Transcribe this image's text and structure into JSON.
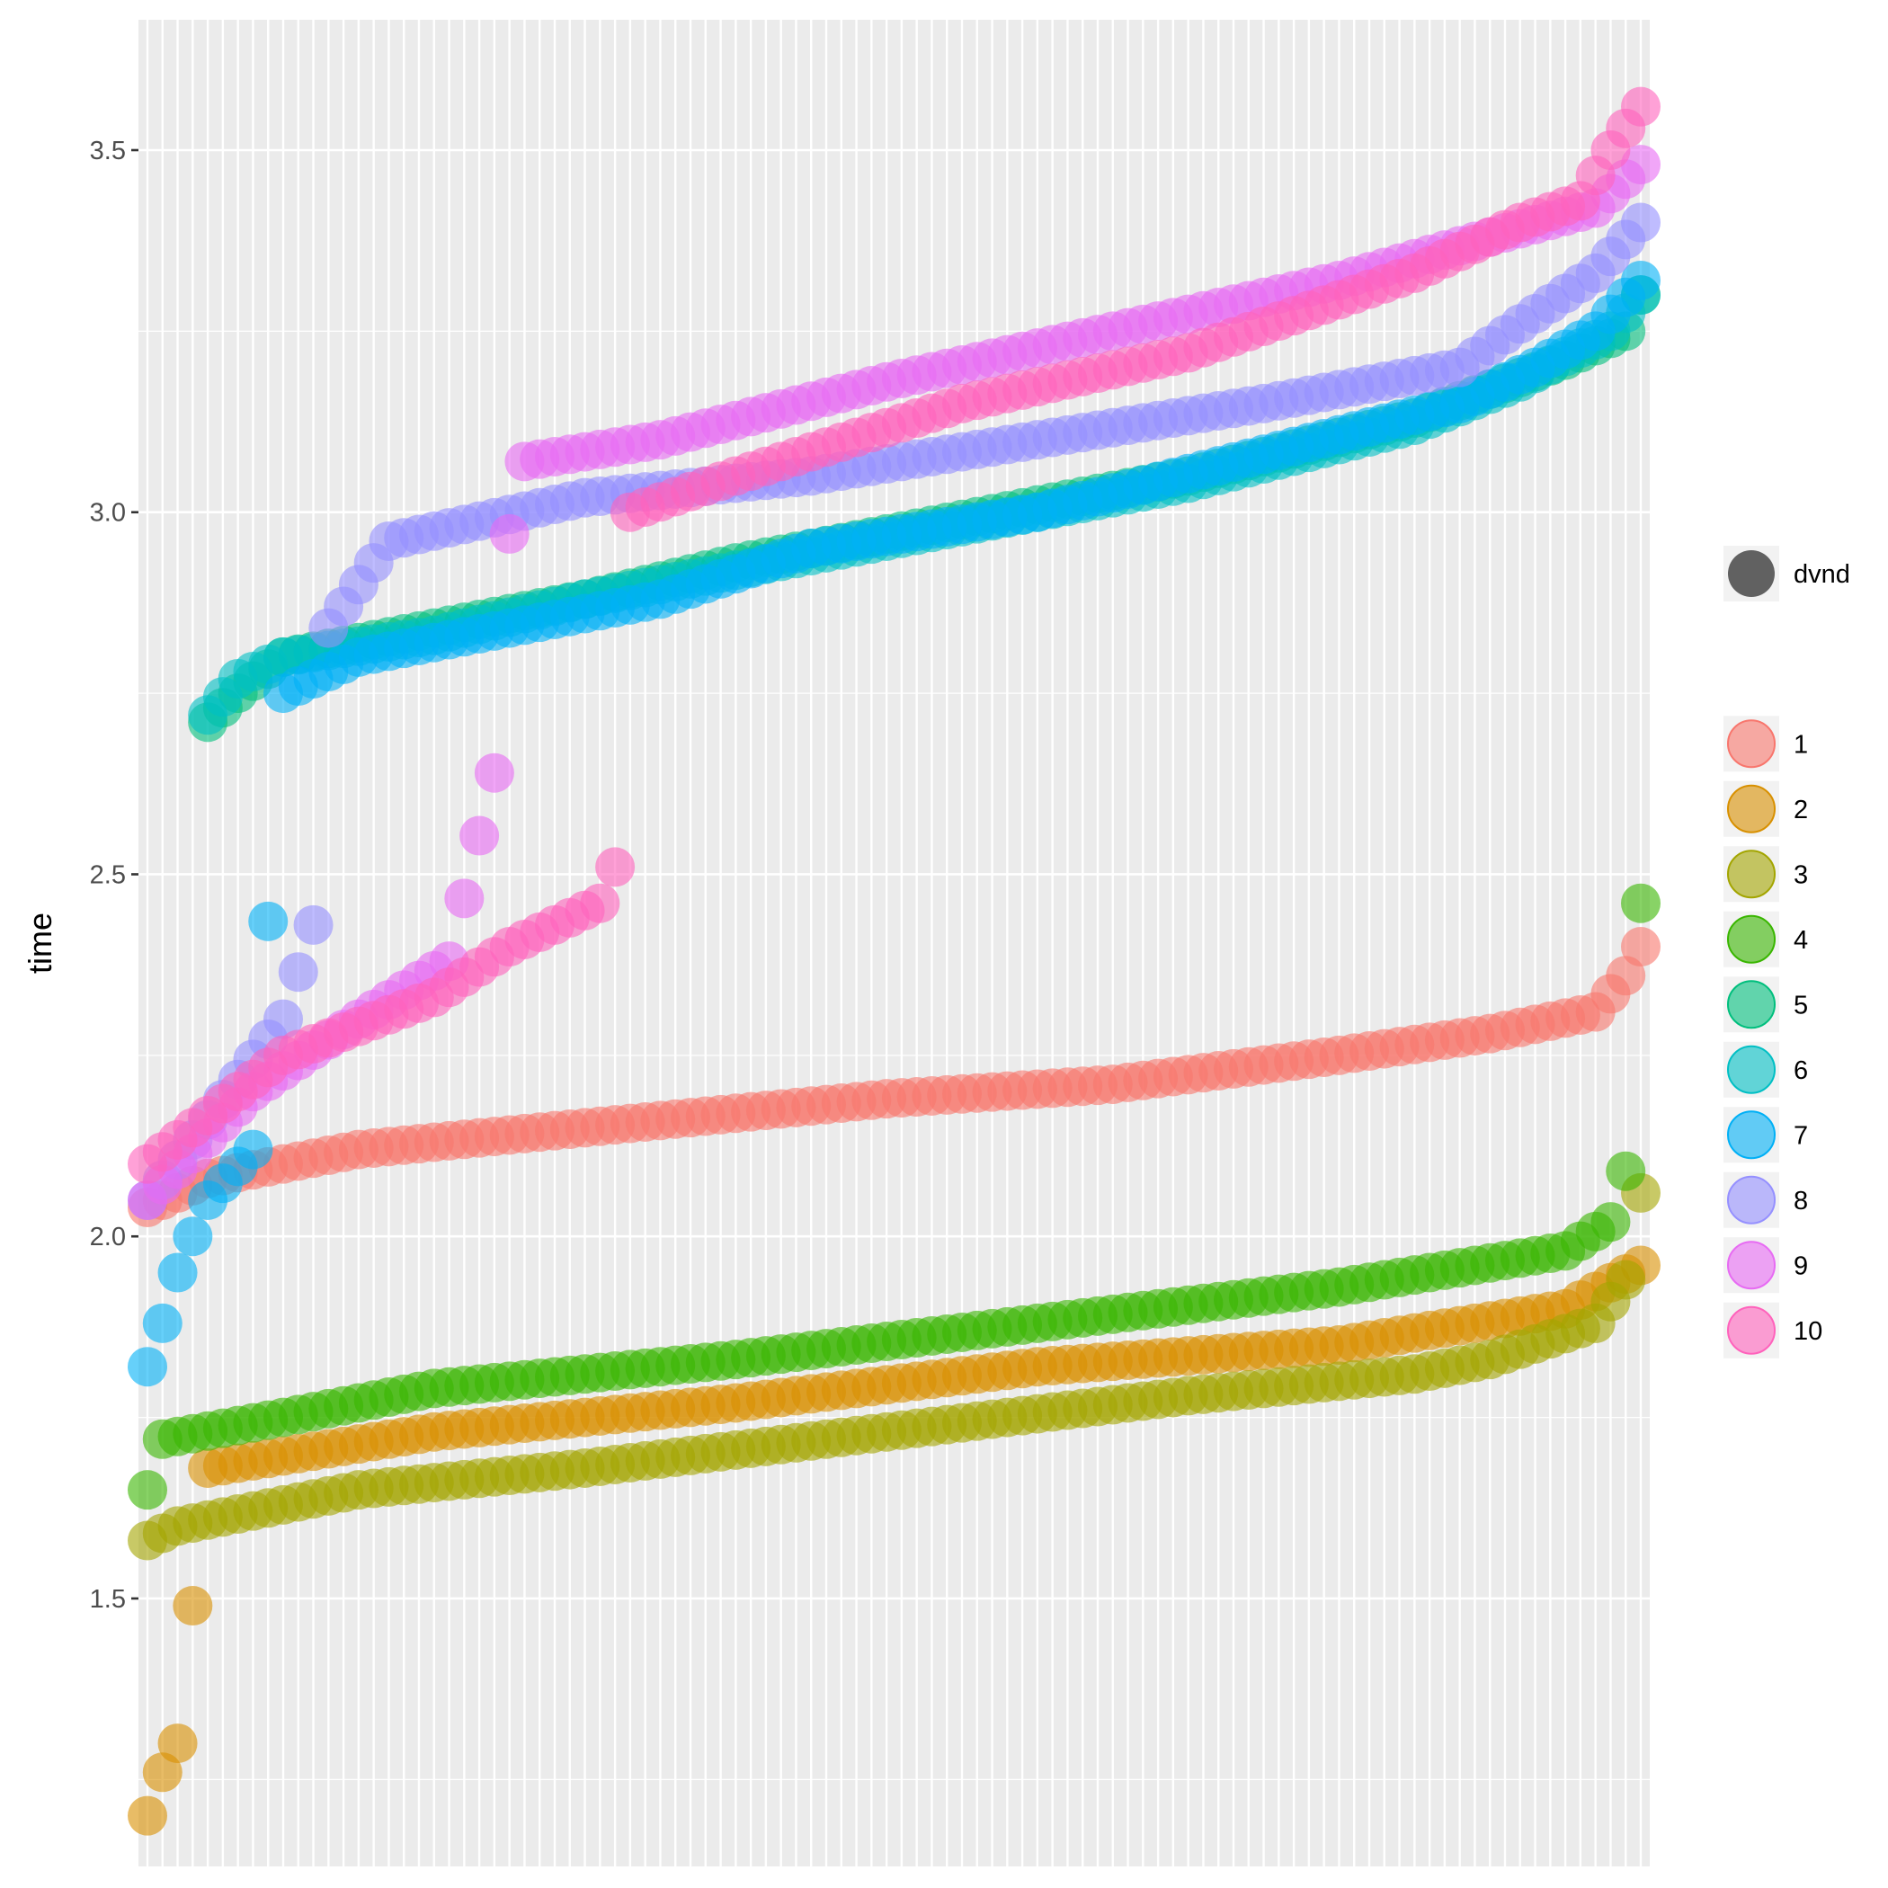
{
  "chart_data": {
    "type": "scatter",
    "title": "",
    "xlabel": "",
    "ylabel": "time",
    "ylim": [
      1.13,
      3.68
    ],
    "y_ticks": [
      1.5,
      2.0,
      2.5,
      3.0,
      3.5
    ],
    "y_tick_labels": [
      "1.5",
      "2.0",
      "2.5",
      "3.0",
      "3.5"
    ],
    "x_ticks_count": 100,
    "x_range": [
      1,
      100
    ],
    "grid": true,
    "legend_position": "right",
    "legend_size_entry": "dvnd",
    "legend_colors_entries": [
      "1",
      "2",
      "3",
      "4",
      "5",
      "6",
      "7",
      "8",
      "9",
      "10"
    ],
    "point_alpha": 0.6,
    "series": [
      {
        "name": "1",
        "color": "#F8766D",
        "knots": [
          [
            1,
            2.04
          ],
          [
            5,
            2.08
          ],
          [
            15,
            2.12
          ],
          [
            30,
            2.15
          ],
          [
            50,
            2.19
          ],
          [
            65,
            2.21
          ],
          [
            80,
            2.25
          ],
          [
            90,
            2.28
          ],
          [
            97,
            2.31
          ],
          [
            99,
            2.36
          ],
          [
            100,
            2.4
          ]
        ]
      },
      {
        "name": "2",
        "color": "#D89000",
        "knots": [
          [
            1,
            1.2
          ],
          [
            2,
            1.26
          ],
          [
            3,
            1.3
          ],
          [
            5,
            1.68
          ],
          [
            20,
            1.73
          ],
          [
            40,
            1.77
          ],
          [
            60,
            1.82
          ],
          [
            80,
            1.85
          ],
          [
            95,
            1.9
          ],
          [
            100,
            1.96
          ]
        ]
      },
      {
        "name": "3",
        "color": "#A3A500",
        "knots": [
          [
            1,
            1.58
          ],
          [
            3,
            1.6
          ],
          [
            15,
            1.65
          ],
          [
            30,
            1.68
          ],
          [
            50,
            1.73
          ],
          [
            70,
            1.78
          ],
          [
            85,
            1.81
          ],
          [
            90,
            1.83
          ],
          [
            97,
            1.88
          ],
          [
            99,
            1.94
          ],
          [
            100,
            2.06
          ]
        ]
      },
      {
        "name": "4",
        "color": "#39B600",
        "knots": [
          [
            1,
            1.65
          ],
          [
            2,
            1.72
          ],
          [
            10,
            1.75
          ],
          [
            20,
            1.79
          ],
          [
            40,
            1.83
          ],
          [
            60,
            1.88
          ],
          [
            80,
            1.93
          ],
          [
            95,
            1.98
          ],
          [
            98,
            2.02
          ],
          [
            99,
            2.09
          ],
          [
            100,
            2.46
          ]
        ]
      },
      {
        "name": "5",
        "color": "#00BF7D",
        "knots": [
          [
            5,
            2.71
          ],
          [
            7,
            2.75
          ],
          [
            10,
            2.8
          ],
          [
            20,
            2.84
          ],
          [
            30,
            2.88
          ],
          [
            40,
            2.93
          ],
          [
            55,
            2.99
          ],
          [
            70,
            3.05
          ],
          [
            85,
            3.13
          ],
          [
            90,
            3.17
          ],
          [
            95,
            3.21
          ],
          [
            99,
            3.25
          ],
          [
            100,
            3.3
          ]
        ]
      },
      {
        "name": "6",
        "color": "#00BFC4",
        "knots": [
          [
            5,
            2.72
          ],
          [
            7,
            2.77
          ],
          [
            10,
            2.8
          ],
          [
            20,
            2.83
          ],
          [
            30,
            2.88
          ],
          [
            40,
            2.92
          ],
          [
            55,
            2.98
          ],
          [
            70,
            3.04
          ],
          [
            85,
            3.12
          ],
          [
            92,
            3.18
          ],
          [
            98,
            3.25
          ],
          [
            100,
            3.3
          ]
        ]
      },
      {
        "name": "7",
        "color": "#00B0F6",
        "knots": [
          [
            1,
            1.82
          ],
          [
            2,
            1.88
          ],
          [
            3,
            1.95
          ],
          [
            4,
            2.0
          ],
          [
            5,
            2.05
          ],
          [
            8,
            2.12
          ],
          [
            10,
            2.75
          ],
          [
            15,
            2.8
          ],
          [
            25,
            2.84
          ],
          [
            35,
            2.88
          ],
          [
            45,
            2.95
          ],
          [
            60,
            3.0
          ],
          [
            75,
            3.08
          ],
          [
            88,
            3.15
          ],
          [
            93,
            3.2
          ],
          [
            97,
            3.25
          ],
          [
            100,
            3.32
          ]
        ]
      },
      {
        "name": "8",
        "color": "#9590FF",
        "knots": [
          [
            1,
            2.05
          ],
          [
            10,
            2.3
          ],
          [
            12,
            2.43
          ],
          [
            13,
            2.84
          ],
          [
            15,
            2.9
          ],
          [
            17,
            2.96
          ],
          [
            30,
            3.02
          ],
          [
            45,
            3.05
          ],
          [
            60,
            3.1
          ],
          [
            75,
            3.15
          ],
          [
            88,
            3.2
          ],
          [
            92,
            3.26
          ],
          [
            97,
            3.33
          ],
          [
            100,
            3.4
          ]
        ]
      },
      {
        "name": "9",
        "color": "#E76BF3",
        "knots": [
          [
            1,
            2.05
          ],
          [
            8,
            2.2
          ],
          [
            15,
            2.3
          ],
          [
            21,
            2.38
          ],
          [
            24,
            2.64
          ],
          [
            25,
            2.97
          ],
          [
            26,
            3.07
          ],
          [
            35,
            3.1
          ],
          [
            50,
            3.18
          ],
          [
            65,
            3.25
          ],
          [
            80,
            3.32
          ],
          [
            90,
            3.38
          ],
          [
            97,
            3.42
          ],
          [
            100,
            3.48
          ]
        ]
      },
      {
        "name": "10",
        "color": "#FF62BC",
        "knots": [
          [
            1,
            2.1
          ],
          [
            10,
            2.25
          ],
          [
            20,
            2.33
          ],
          [
            25,
            2.4
          ],
          [
            31,
            2.46
          ],
          [
            32,
            2.51
          ],
          [
            33,
            3.0
          ],
          [
            40,
            3.05
          ],
          [
            55,
            3.15
          ],
          [
            70,
            3.22
          ],
          [
            85,
            3.33
          ],
          [
            92,
            3.4
          ],
          [
            96,
            3.43
          ],
          [
            98,
            3.5
          ],
          [
            100,
            3.56
          ]
        ]
      }
    ]
  }
}
